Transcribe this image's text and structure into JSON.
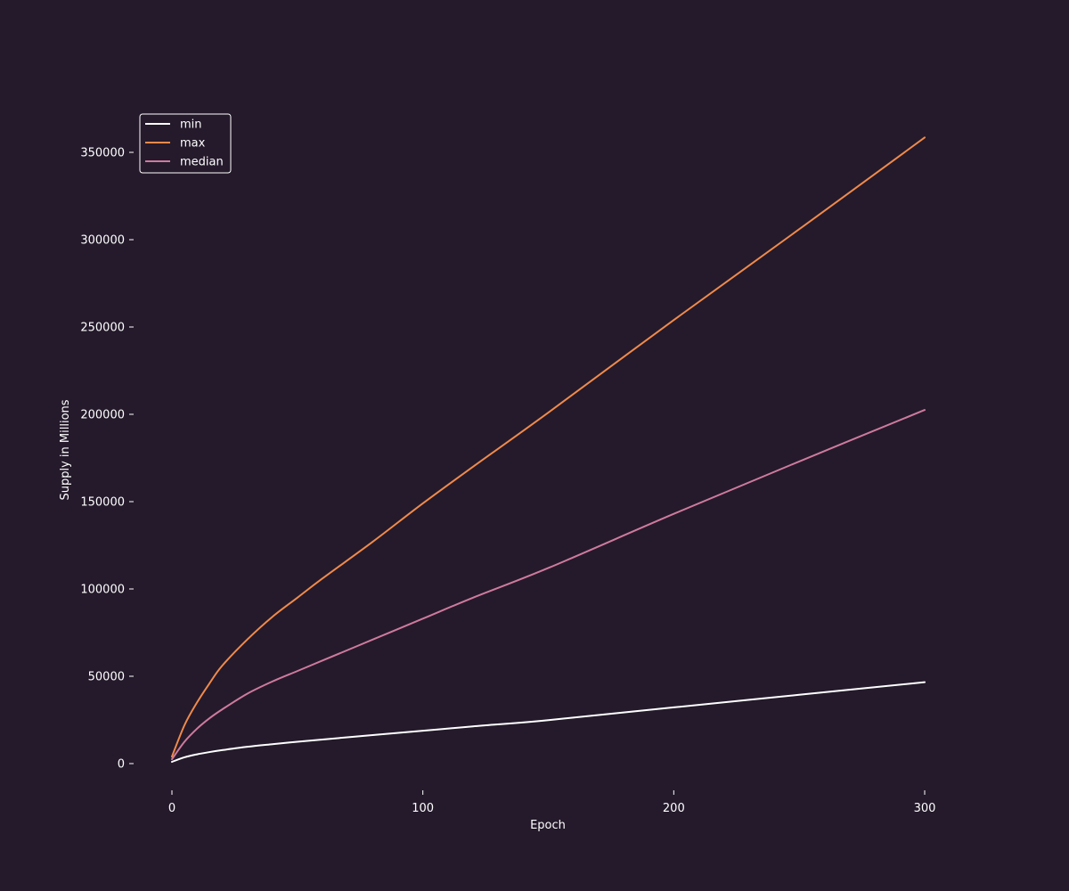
{
  "colors": {
    "background": "#241a2b",
    "text": "#ffffff",
    "tick": "#ffffff",
    "legend_border": "#ffffff"
  },
  "chart_data": {
    "type": "line",
    "xlabel": "Epoch",
    "ylabel": "Supply in Millions",
    "xlim": [
      -15,
      315
    ],
    "ylim": [
      -15000,
      380000
    ],
    "xticks": [
      0,
      100,
      200,
      300
    ],
    "yticks": [
      0,
      50000,
      100000,
      150000,
      200000,
      250000,
      300000,
      350000
    ],
    "legend_position": "top-left",
    "grid": false,
    "series": [
      {
        "name": "min",
        "color": "#ffffff",
        "x": [
          0,
          5,
          10,
          15,
          20,
          30,
          40,
          50,
          60,
          80,
          100,
          120,
          150,
          200,
          250,
          300
        ],
        "y": [
          1000,
          3600,
          5300,
          6600,
          7700,
          9600,
          11100,
          12500,
          13800,
          16300,
          18800,
          21300,
          24900,
          32200,
          39400,
          46600
        ]
      },
      {
        "name": "max",
        "color": "#f08a4b",
        "x": [
          0,
          5,
          10,
          15,
          20,
          30,
          40,
          50,
          60,
          80,
          100,
          120,
          150,
          200,
          250,
          300
        ],
        "y": [
          4000,
          22000,
          35000,
          46000,
          56000,
          71000,
          84000,
          95000,
          106000,
          127000,
          149000,
          170000,
          201000,
          254000,
          306000,
          358500
        ]
      },
      {
        "name": "median",
        "color": "#cf7a9d",
        "x": [
          0,
          5,
          10,
          15,
          20,
          30,
          40,
          50,
          60,
          80,
          100,
          120,
          150,
          200,
          250,
          300
        ],
        "y": [
          2500,
          12500,
          20000,
          26000,
          31000,
          40000,
          47000,
          53000,
          59000,
          71000,
          83000,
          95000,
          112000,
          143000,
          173000,
          202500
        ]
      }
    ]
  }
}
